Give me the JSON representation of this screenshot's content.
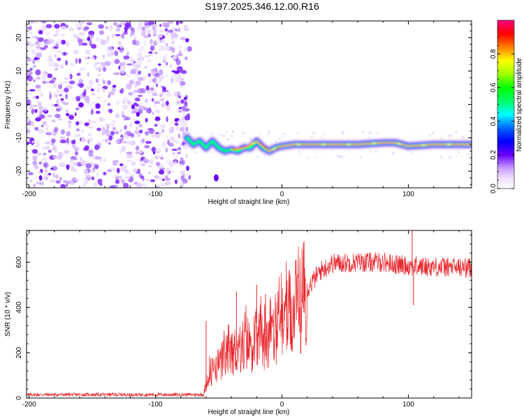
{
  "title": "S197.2025.346.12.00.R16",
  "chart_data": [
    {
      "type": "heatmap",
      "name": "spectrogram",
      "xlabel": "Height of straight line (km)",
      "ylabel": "Frequency (Hz)",
      "xlim": [
        -202,
        150
      ],
      "ylim": [
        -25,
        25
      ],
      "xticks": [
        -200,
        -100,
        0,
        100
      ],
      "xtick_labels": [
        "-200",
        "-100",
        "0",
        "100"
      ],
      "yticks": [
        -20,
        -10,
        0,
        10,
        20
      ],
      "ytick_labels": [
        "-20",
        "-10",
        "0",
        "10",
        "20"
      ],
      "noise_region_x": [
        -202,
        -73
      ],
      "signal_track": {
        "x": [
          -75,
          -70,
          -65,
          -60,
          -55,
          -50,
          -45,
          -40,
          -35,
          -30,
          -25,
          -20,
          -15,
          -10,
          -5,
          0,
          10,
          20,
          40,
          60,
          80,
          90,
          100,
          120,
          150
        ],
        "y": [
          -10,
          -12,
          -11,
          -13,
          -11,
          -13,
          -14,
          -13.5,
          -14,
          -13,
          -13,
          -11,
          -13,
          -14,
          -13,
          -12.5,
          -12,
          -12,
          -12,
          -12,
          -11.5,
          -11.5,
          -12.5,
          -12,
          -12
        ]
      },
      "isolated_blob": {
        "x": -52,
        "y": -22
      },
      "colorbar": {
        "label": "Normalized spectral amplitude",
        "range": [
          0.0,
          1.0
        ],
        "ticks": [
          0.0,
          0.2,
          0.4,
          0.6,
          0.8
        ],
        "tick_labels": [
          "0.0",
          "0.2",
          "0.4",
          "0.6",
          "0.8"
        ]
      }
    },
    {
      "type": "line",
      "name": "snr",
      "xlabel": "Height of straight line (km)",
      "ylabel": "SNR (10 * v/v)",
      "xlim": [
        -202,
        150
      ],
      "ylim": [
        0,
        740
      ],
      "xticks": [
        -200,
        -100,
        0,
        100
      ],
      "xtick_labels": [
        "-200",
        "-100",
        "0",
        "100"
      ],
      "yticks": [
        0,
        200,
        400,
        600
      ],
      "ytick_labels": [
        "0",
        "200",
        "400",
        "600"
      ],
      "color": "#e8252a",
      "envelope": {
        "x": [
          -202,
          -62,
          -58,
          -50,
          -40,
          -30,
          -20,
          -10,
          0,
          10,
          20,
          30,
          40,
          60,
          80,
          90,
          100,
          110,
          120,
          150
        ],
        "y": [
          15,
          15,
          110,
          150,
          200,
          230,
          250,
          290,
          330,
          390,
          480,
          560,
          595,
          600,
          600,
          590,
          585,
          580,
          580,
          575
        ]
      },
      "peaks": [
        {
          "x": -60,
          "y": 340
        },
        {
          "x": -36,
          "y": 470
        },
        {
          "x": -20,
          "y": 500
        },
        {
          "x": -13,
          "y": 460
        },
        {
          "x": 103,
          "y": 740
        },
        {
          "x": 104,
          "y": 410
        }
      ]
    }
  ]
}
